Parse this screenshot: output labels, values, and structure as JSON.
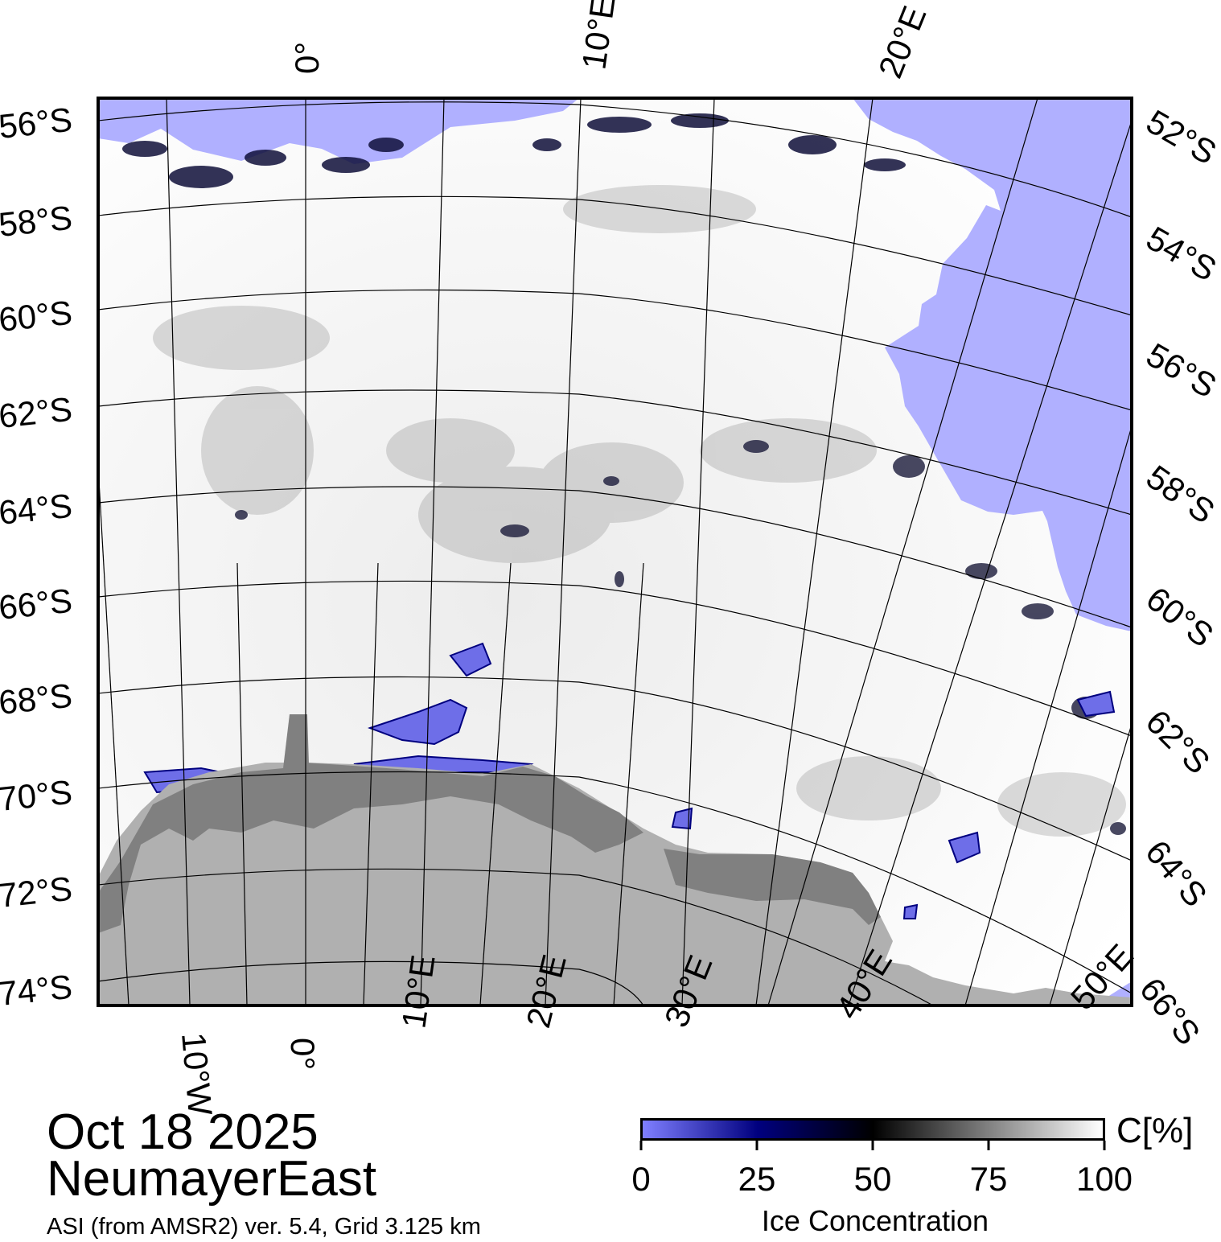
{
  "map": {
    "lat_labels_left": [
      "56°S",
      "58°S",
      "60°S",
      "62°S",
      "64°S",
      "66°S",
      "68°S",
      "70°S",
      "72°S",
      "74°S"
    ],
    "lat_labels_right": [
      "52°S",
      "54°S",
      "56°S",
      "58°S",
      "60°S",
      "62°S",
      "64°S",
      "66°S"
    ],
    "lon_labels_top": [
      "0°",
      "10°E",
      "20°E"
    ],
    "lon_labels_bottom": [
      "10°W",
      "0°",
      "10°E",
      "20°E",
      "30°E",
      "40°E",
      "50°E"
    ],
    "colors": {
      "open_water": "#b0b0ff",
      "land": "#b0b0b0",
      "ice_shelf": "#808080",
      "ice_high": "#ffffff",
      "ice_mid": "#000000",
      "ice_low": "#00007f",
      "ice_min": "#7f7fff"
    }
  },
  "title": {
    "date": "Oct 18 2025",
    "region": "NeumayerEast",
    "source": "ASI (from AMSR2) ver. 5.4,  Grid 3.125 km"
  },
  "colorbar": {
    "unit": "C[%]",
    "label": "Ice Concentration",
    "ticks": [
      "0",
      "25",
      "50",
      "75",
      "100"
    ],
    "range": [
      0,
      100
    ],
    "colors": [
      "#7f7fff",
      "#00007f",
      "#000000",
      "#808080",
      "#ffffff"
    ]
  }
}
